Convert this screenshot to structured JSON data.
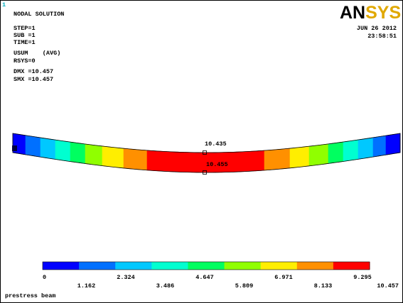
{
  "corner_label": "1",
  "header": {
    "title": "NODAL SOLUTION",
    "lines": [
      "STEP=1",
      "SUB =1",
      "TIME=1",
      "USUM    (AVG)",
      "RSYS=0",
      "DMX =10.457",
      "SMX =10.457"
    ]
  },
  "logo": {
    "part1": "AN",
    "part2": "SYS"
  },
  "date": "JUN 26 2012",
  "time": "23:58:51",
  "annotations": [
    "10.435",
    "10.455"
  ],
  "legend": {
    "labels": [
      "0",
      "1.162",
      "2.324",
      "3.486",
      "4.647",
      "5.809",
      "6.971",
      "8.133",
      "9.295",
      "10.457"
    ],
    "colors": [
      "#0000ff",
      "#0070ff",
      "#00c8ff",
      "#00ffd0",
      "#00ff60",
      "#90ff00",
      "#ffee00",
      "#ff9000",
      "#ff0000"
    ]
  },
  "caption": "prestress beam"
}
